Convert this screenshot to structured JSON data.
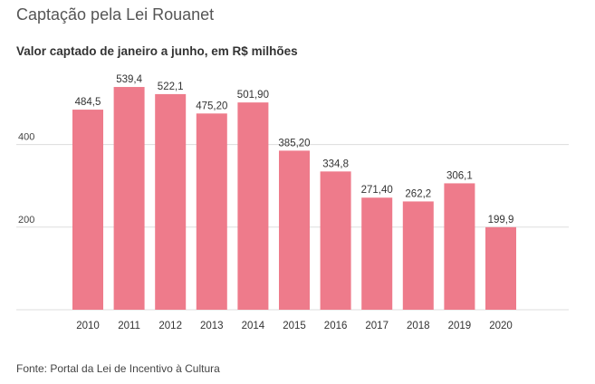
{
  "header": {
    "title": "Captação pela Lei Rouanet",
    "subtitle": "Valor captado de janeiro a junho, em R$ milhões"
  },
  "footer": {
    "source": "Fonte: Portal da Lei de Incentivo à Cultura"
  },
  "colors": {
    "bar": "#ee7b8b",
    "grid": "#dddddd",
    "axis_text": "#444444"
  },
  "chart_data": {
    "type": "bar",
    "categories": [
      "2010",
      "2011",
      "2012",
      "2013",
      "2014",
      "2015",
      "2016",
      "2017",
      "2018",
      "2019",
      "2020"
    ],
    "values": [
      484.5,
      539.4,
      522.1,
      475.2,
      501.9,
      385.2,
      334.8,
      271.4,
      262.2,
      306.1,
      199.9
    ],
    "value_labels": [
      "484,5",
      "539,4",
      "522,1",
      "475,20",
      "501,90",
      "385,20",
      "334,8",
      "271,40",
      "262,2",
      "306,1",
      "199,9"
    ],
    "yticks": [
      200,
      400
    ],
    "ylim": [
      0,
      600
    ],
    "grid": true,
    "title": "Captação pela Lei Rouanet",
    "subtitle": "Valor captado de janeiro a junho, em R$ milhões",
    "xlabel": "",
    "ylabel": ""
  }
}
